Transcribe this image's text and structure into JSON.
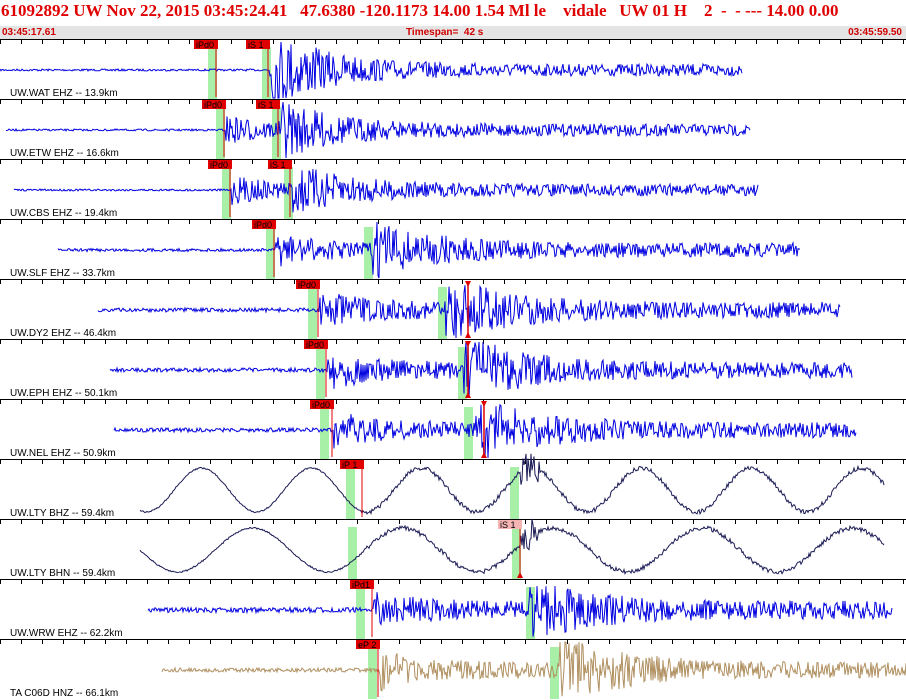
{
  "header": {
    "title": "61092892 UW Nov 22, 2015 03:45:24.41   47.6380 -120.1173 14.00 1.54 Ml le    vidale   UW 01 H    2  -  - --- 14.00 0.00",
    "start_time": "03:45:17.61",
    "timespan": "Timespan=  42 s",
    "end_time": "03:45:59.50"
  },
  "colors": {
    "trace_blue": "#0000e0",
    "trace_dark": "#1a1a55",
    "trace_tan": "#b09060",
    "pick_red": "#e00000",
    "pick_pink": "#f4b4b4",
    "window_green": "#a8f0a8",
    "header_text": "#e00000",
    "band_grey": "#e4e4e4"
  },
  "traces": [
    {
      "label": "UW.WAT EHZ -- 13.9km",
      "color": "blue",
      "start": 0,
      "end": 742,
      "onset": 270,
      "s_onset": 272,
      "amp": 12,
      "noise": 1,
      "picks": [
        {
          "label": "iPd0",
          "x": 216,
          "style": "red"
        },
        {
          "label": "iS 1",
          "x": 268,
          "style": "red"
        }
      ],
      "windows": [
        212,
        266
      ]
    },
    {
      "label": "UW.ETW EHZ -- 16.6km",
      "color": "blue",
      "start": 6,
      "end": 750,
      "onset": 226,
      "s_onset": 282,
      "amp": 10,
      "noise": 1,
      "picks": [
        {
          "label": "iPd0",
          "x": 224,
          "style": "red"
        },
        {
          "label": "iS 1",
          "x": 278,
          "style": "red"
        }
      ],
      "windows": [
        220,
        276
      ]
    },
    {
      "label": "UW.CBS EHZ -- 19.4km",
      "color": "blue",
      "start": 14,
      "end": 758,
      "onset": 232,
      "s_onset": 292,
      "amp": 9,
      "noise": 1,
      "picks": [
        {
          "label": "iPd0",
          "x": 230,
          "style": "red"
        },
        {
          "label": "iS 1",
          "x": 290,
          "style": "red"
        }
      ],
      "windows": [
        226,
        288
      ]
    },
    {
      "label": "UW.SLF EHZ -- 33.7km",
      "color": "blue",
      "start": 58,
      "end": 800,
      "onset": 276,
      "s_onset": 372,
      "amp": 11,
      "noise": 1.5,
      "picks": [
        {
          "label": "iPd0",
          "x": 274,
          "style": "red"
        }
      ],
      "windows": [
        270,
        368
      ]
    },
    {
      "label": "UW.DY2 EHZ -- 46.4km",
      "color": "blue",
      "start": 98,
      "end": 840,
      "onset": 320,
      "s_onset": 446,
      "amp": 13,
      "noise": 2,
      "picks": [
        {
          "label": "iPd0",
          "x": 318,
          "style": "red"
        },
        {
          "label": "",
          "x": 468,
          "style": "marker"
        }
      ],
      "windows": [
        312,
        442
      ]
    },
    {
      "label": "UW.EPH EHZ -- 50.1km",
      "color": "blue",
      "start": 110,
      "end": 852,
      "onset": 328,
      "s_onset": 464,
      "amp": 13,
      "noise": 2,
      "picks": [
        {
          "label": "iPd0",
          "x": 326,
          "style": "red"
        },
        {
          "label": "",
          "x": 468,
          "style": "marker"
        }
      ],
      "windows": [
        320,
        462
      ]
    },
    {
      "label": "UW.NEL EHZ -- 50.9km",
      "color": "blue",
      "start": 114,
      "end": 856,
      "onset": 334,
      "s_onset": 476,
      "amp": 12,
      "noise": 2,
      "picks": [
        {
          "label": "iPd0",
          "x": 332,
          "style": "red"
        },
        {
          "label": "",
          "x": 484,
          "style": "marker"
        }
      ],
      "windows": [
        324,
        468
      ]
    },
    {
      "label": "UW.LTY BHZ -- 59.4km",
      "color": "dark",
      "start": 140,
      "end": 884,
      "onset": 360,
      "s_onset": 520,
      "amp": 4,
      "noise": 1.5,
      "picks": [
        {
          "label": "iP 1",
          "x": 362,
          "style": "red"
        }
      ],
      "windows": [
        350,
        514
      ]
    },
    {
      "label": "UW.LTY BHN -- 59.4km",
      "color": "dark",
      "start": 140,
      "end": 884,
      "onset": 360,
      "s_onset": 520,
      "amp": 4,
      "noise": 1.5,
      "picks": [
        {
          "label": "iS 1",
          "x": 520,
          "style": "pink"
        }
      ],
      "windows": [
        352,
        516
      ]
    },
    {
      "label": "UW.WRW EHZ -- 62.2km",
      "color": "blue",
      "start": 148,
      "end": 892,
      "onset": 374,
      "s_onset": 530,
      "amp": 11,
      "noise": 2.5,
      "picks": [
        {
          "label": "iPd1",
          "x": 372,
          "style": "red"
        }
      ],
      "windows": [
        360,
        530
      ]
    },
    {
      "label": "TA C06D HNZ -- 66.1km",
      "color": "tan",
      "start": 162,
      "end": 906,
      "onset": 380,
      "s_onset": 560,
      "amp": 14,
      "noise": 2,
      "picks": [
        {
          "label": "eP 2",
          "x": 378,
          "style": "red"
        }
      ],
      "windows": [
        372,
        554
      ]
    }
  ]
}
